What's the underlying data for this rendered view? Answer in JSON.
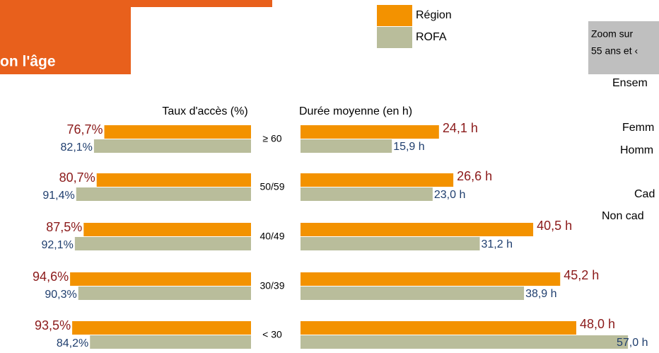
{
  "header": {
    "title": "on l'âge"
  },
  "zoom_box": {
    "lines": [
      "Zoom sur",
      "55 ans et ‹"
    ]
  },
  "side_labels": [
    "Ensem",
    "Femm",
    "Homm",
    "Cad",
    "Non cad"
  ],
  "chart_data": [
    {
      "type": "bar",
      "orientation": "horizontal-left",
      "title": "Taux d'accès (%)",
      "categories": [
        "≥ 60",
        "50/59",
        "40/49",
        "30/39",
        "< 30"
      ],
      "series": [
        {
          "name": "Région",
          "color": "#f39200",
          "label_color": "#8b1a1a",
          "values": [
            76.7,
            80.7,
            87.5,
            94.6,
            93.5
          ],
          "value_labels": [
            "76,7%",
            "80,7%",
            "87,5%",
            "94,6%",
            "93,5%"
          ]
        },
        {
          "name": "ROFA",
          "color": "#b9bd9b",
          "label_color": "#1f3e6e",
          "values": [
            82.1,
            91.4,
            92.1,
            90.3,
            84.2
          ],
          "value_labels": [
            "82,1%",
            "91,4%",
            "92,1%",
            "90,3%",
            "84,2%"
          ]
        }
      ]
    },
    {
      "type": "bar",
      "orientation": "horizontal-right",
      "title": "Durée moyenne (en h)",
      "series": [
        {
          "color": "#f39200",
          "label_color": "#8b1a1a",
          "values": [
            24.1,
            26.6,
            40.5,
            45.2,
            48.0
          ],
          "value_labels": [
            "24,1 h",
            "26,6 h",
            "40,5 h",
            "45,2 h",
            "48,0 h"
          ]
        },
        {
          "color": "#b9bd9b",
          "label_color": "#1f3e6e",
          "values": [
            15.9,
            23.0,
            31.2,
            38.9,
            57.0
          ],
          "value_labels": [
            "15,9 h",
            "23,0 h",
            "31,2 h",
            "38,9 h",
            "57,0 h"
          ]
        }
      ]
    }
  ]
}
